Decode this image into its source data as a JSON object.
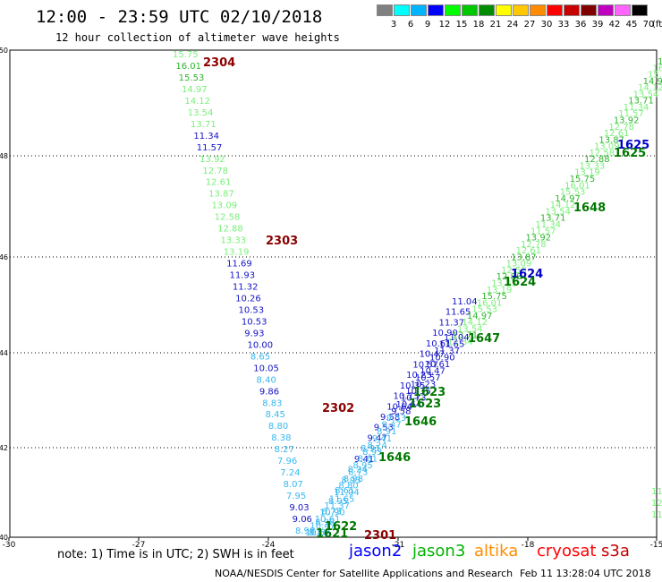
{
  "header": {
    "title": "12:00 - 23:59 UTC 02/10/2018",
    "subtitle": "12 hour collection of altimeter wave heights"
  },
  "legend": {
    "unit": "(ft)",
    "bins": [
      {
        "label": "3",
        "color": "#808080"
      },
      {
        "label": "6",
        "color": "#00ffff"
      },
      {
        "label": "9",
        "color": "#00b4ff"
      },
      {
        "label": "12",
        "color": "#0000ff"
      },
      {
        "label": "15",
        "color": "#00ff00"
      },
      {
        "label": "18",
        "color": "#00c800"
      },
      {
        "label": "21",
        "color": "#008c00"
      },
      {
        "label": "24",
        "color": "#ffff00"
      },
      {
        "label": "27",
        "color": "#ffc800"
      },
      {
        "label": "30",
        "color": "#ff8c00"
      },
      {
        "label": "33",
        "color": "#ff0000"
      },
      {
        "label": "36",
        "color": "#c80000"
      },
      {
        "label": "39",
        "color": "#800000"
      },
      {
        "label": "42",
        "color": "#c000c0"
      },
      {
        "label": "45",
        "color": "#ff64ff"
      },
      {
        "label": "70",
        "color": "#000000"
      }
    ]
  },
  "map": {
    "lon_range": [
      -30,
      -15
    ],
    "lat_range": [
      40,
      50
    ],
    "lon_ticks": [
      "-30",
      "-27",
      "-24",
      "-21",
      "-18",
      "-15"
    ],
    "lat_ticks": [
      "50",
      "48",
      "46",
      "44",
      "42",
      "40"
    ]
  },
  "tracks": {
    "west": [
      {
        "v": "15.75",
        "c": "#7aef7a"
      },
      {
        "v": "16.01",
        "c": "#2fb52f"
      },
      {
        "v": "15.53",
        "c": "#2fb52f"
      },
      {
        "v": "14.97",
        "c": "#7aef7a"
      },
      {
        "v": "14.12",
        "c": "#7aef7a"
      },
      {
        "v": "13.54",
        "c": "#7aef7a"
      },
      {
        "v": "13.71",
        "c": "#7aef7a"
      },
      {
        "v": "11.34",
        "c": "#1414c8"
      },
      {
        "v": "11.57",
        "c": "#1414c8"
      },
      {
        "v": "13.92",
        "c": "#7aef7a"
      },
      {
        "v": "12.78",
        "c": "#7aef7a"
      },
      {
        "v": "12.61",
        "c": "#7aef7a"
      },
      {
        "v": "13.87",
        "c": "#7aef7a"
      },
      {
        "v": "13.09",
        "c": "#7aef7a"
      },
      {
        "v": "12.58",
        "c": "#7aef7a"
      },
      {
        "v": "12.88",
        "c": "#7aef7a"
      },
      {
        "v": "13.33",
        "c": "#7aef7a"
      },
      {
        "v": "13.19",
        "c": "#7aef7a"
      },
      {
        "v": "11.69",
        "c": "#1414c8"
      },
      {
        "v": "11.93",
        "c": "#1414c8"
      },
      {
        "v": "11.32",
        "c": "#1414c8"
      },
      {
        "v": "10.26",
        "c": "#1414c8"
      },
      {
        "v": "10.53",
        "c": "#1414c8"
      },
      {
        "v": "10.53",
        "c": "#1414c8"
      },
      {
        "v": "9.93",
        "c": "#1414c8"
      },
      {
        "v": "10.00",
        "c": "#1414c8"
      },
      {
        "v": "8.65",
        "c": "#38b8f0"
      },
      {
        "v": "10.05",
        "c": "#1414c8"
      },
      {
        "v": "8.40",
        "c": "#38b8f0"
      },
      {
        "v": "9.86",
        "c": "#1414c8"
      },
      {
        "v": "8.83",
        "c": "#38b8f0"
      },
      {
        "v": "8.45",
        "c": "#38b8f0"
      },
      {
        "v": "8.80",
        "c": "#38b8f0"
      },
      {
        "v": "8.38",
        "c": "#38b8f0"
      },
      {
        "v": "8.27",
        "c": "#38b8f0"
      },
      {
        "v": "7.96",
        "c": "#38b8f0"
      },
      {
        "v": "7.24",
        "c": "#38b8f0"
      },
      {
        "v": "8.07",
        "c": "#38b8f0"
      },
      {
        "v": "7.95",
        "c": "#38b8f0"
      },
      {
        "v": "9.03",
        "c": "#1414c8"
      },
      {
        "v": "9.06",
        "c": "#1414c8"
      },
      {
        "v": "8.98",
        "c": "#38b8f0"
      }
    ],
    "east": [
      {
        "v": "11.04",
        "c": "#1414c8"
      },
      {
        "v": "11.65",
        "c": "#1414c8"
      },
      {
        "v": "11.37",
        "c": "#1414c8"
      },
      {
        "v": "10.90",
        "c": "#1414c8"
      },
      {
        "v": "10.61",
        "c": "#1414c8"
      },
      {
        "v": "10.47",
        "c": "#1414c8"
      },
      {
        "v": "10.57",
        "c": "#1414c8"
      },
      {
        "v": "10.23",
        "c": "#1414c8"
      },
      {
        "v": "10.35",
        "c": "#1414c8"
      },
      {
        "v": "10.73",
        "c": "#1414c8"
      },
      {
        "v": "10.64",
        "c": "#1414c8"
      },
      {
        "v": "9.58",
        "c": "#1414c8"
      },
      {
        "v": "9.53",
        "c": "#1414c8"
      },
      {
        "v": "9.47",
        "c": "#1414c8"
      },
      {
        "v": "8.91",
        "c": "#38b8f0"
      },
      {
        "v": "9.41",
        "c": "#1414c8"
      },
      {
        "v": "8.24",
        "c": "#38b8f0"
      },
      {
        "v": "8.93",
        "c": "#38b8f0"
      },
      {
        "v": "8.61",
        "c": "#38b8f0"
      },
      {
        "v": "8.95",
        "c": "#38b8f0"
      },
      {
        "v": "8.73",
        "c": "#38b8f0"
      },
      {
        "v": "8.98",
        "c": "#38b8f0"
      },
      {
        "v": "8.80",
        "c": "#38b8f0"
      }
    ]
  },
  "labels": [
    {
      "text": "2304",
      "c": "#8b0000"
    },
    {
      "text": "2303",
      "c": "#8b0000"
    },
    {
      "text": "2302",
      "c": "#8b0000"
    },
    {
      "text": "2301",
      "c": "#8b0000"
    },
    {
      "text": "1625",
      "c": "#0000c8"
    },
    {
      "text": "1625",
      "c": "#007800"
    },
    {
      "text": "1648",
      "c": "#007800"
    },
    {
      "text": "1624",
      "c": "#0000c8"
    },
    {
      "text": "1624",
      "c": "#007800"
    },
    {
      "text": "1647",
      "c": "#007800"
    },
    {
      "text": "1623",
      "c": "#007800"
    },
    {
      "text": "1623",
      "c": "#007800"
    },
    {
      "text": "1646",
      "c": "#007800"
    },
    {
      "text": "1646",
      "c": "#007800"
    },
    {
      "text": "1622",
      "c": "#007800"
    },
    {
      "text": "1621",
      "c": "#007800"
    }
  ],
  "edge_values": [
    {
      "v": "11",
      "c": "#7aef7a"
    },
    {
      "v": "12",
      "c": "#7aef7a"
    },
    {
      "v": "11",
      "c": "#7aef7a"
    }
  ],
  "footer": {
    "note": "note: 1) Time is in UTC; 2) SWH is in feet",
    "missions": [
      {
        "name": "jason2",
        "color": "#0000ff"
      },
      {
        "name": "jason3",
        "color": "#00b400"
      },
      {
        "name": "altika",
        "color": "#ff8c00"
      },
      {
        "name": "cryosat",
        "color": "#ff0000"
      },
      {
        "name": "s3a",
        "color": "#c80000"
      }
    ],
    "credit": "NOAA/NESDIS Center for Satellite Applications and Research",
    "timestamp": "Feb 11 13:28:04 UTC 2018"
  }
}
